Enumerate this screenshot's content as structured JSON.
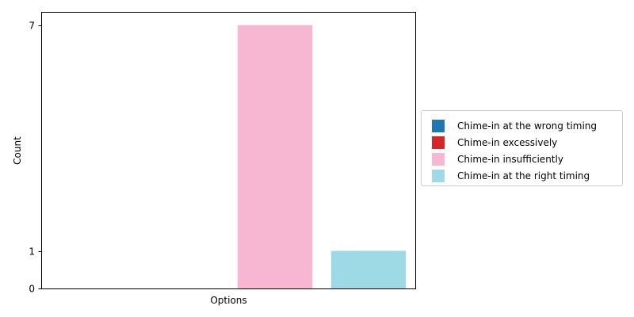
{
  "chart_data": {
    "type": "bar",
    "xlabel": "Options",
    "ylabel": "Count",
    "ylim": [
      0,
      7.35
    ],
    "yticks": [
      0,
      1,
      7
    ],
    "grid": false,
    "legend_placement": "center-right outside plot",
    "series": [
      {
        "name": "Chime-in at the wrong timing",
        "value": 0,
        "color": "#1f77b4"
      },
      {
        "name": "Chime-in excessively",
        "value": 0,
        "color": "#d62728"
      },
      {
        "name": "Chime-in insufficiently",
        "value": 7,
        "color": "#f7b6d2"
      },
      {
        "name": "Chime-in at the right timing",
        "value": 1,
        "color": "#9edae5"
      }
    ]
  }
}
